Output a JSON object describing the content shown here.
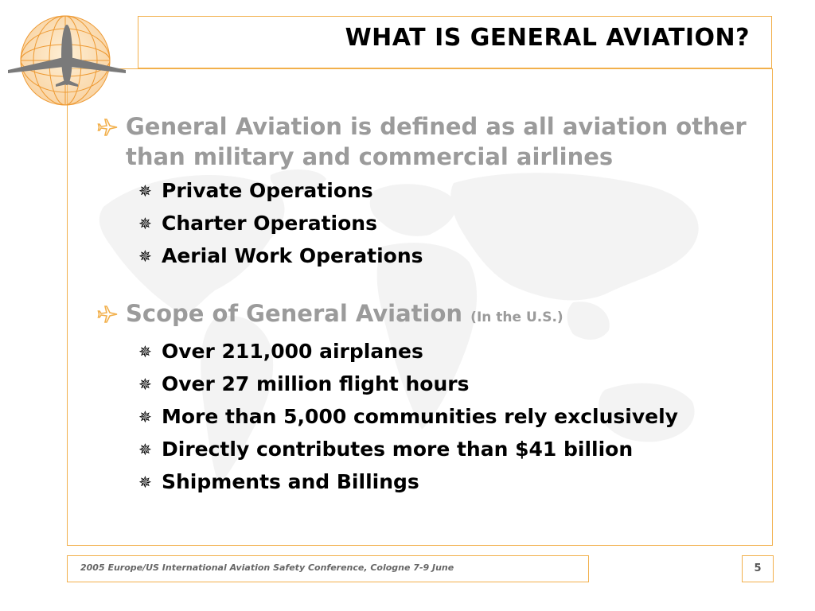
{
  "slide": {
    "title": "WHAT IS GENERAL AVIATION?",
    "sections": [
      {
        "heading": "General Aviation is defined as all aviation other than military and commercial airlines",
        "note": "",
        "items": [
          "Private Operations",
          "Charter Operations",
          "Aerial Work Operations"
        ]
      },
      {
        "heading": "Scope of General Aviation",
        "note": "(In the U.S.)",
        "items": [
          "Over 211,000 airplanes",
          "Over 27 million flight hours",
          "More than 5,000 communities rely exclusively",
          "Directly contributes more than $41 billion",
          "Shipments and Billings"
        ]
      }
    ],
    "footer": "2005 Europe/US International Aviation Safety Conference, Cologne 7-9 June",
    "page_number": "5"
  },
  "icons": {
    "logo": "globe-airplane-logo",
    "bullet_level1": "airplane-icon",
    "bullet_level2": "compass-star-icon",
    "background": "world-map-watermark"
  },
  "colors": {
    "accent": "#f2b04c",
    "heading_gray": "#9b9b9b",
    "text": "#000000",
    "watermark": "#f4f4f4"
  }
}
